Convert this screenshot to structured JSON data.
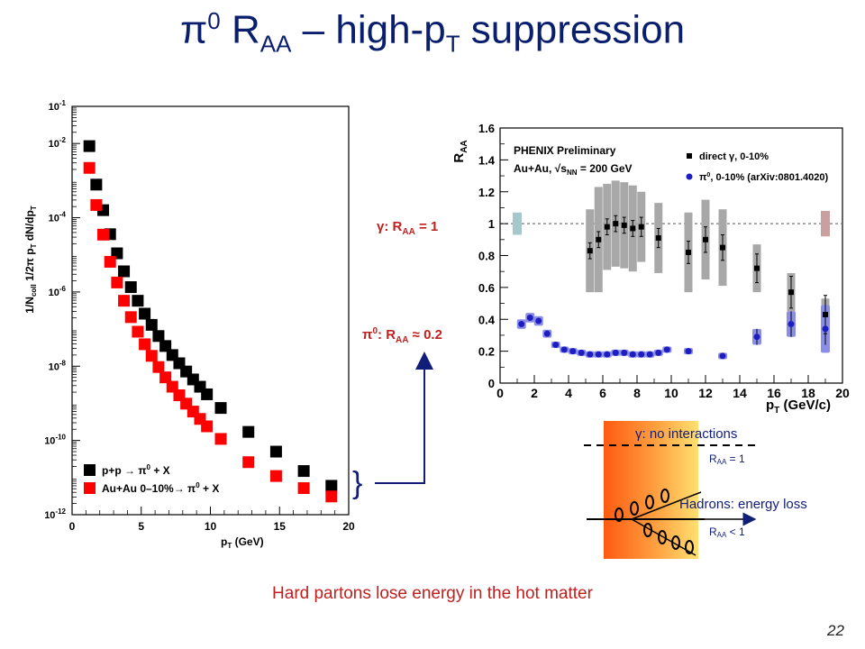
{
  "slide": {
    "title_pi": "π",
    "title_pi_sup": "0",
    "title_r": " R",
    "title_r_sub": "AA",
    "title_rest": " – high-p",
    "title_t_sub": "T",
    "title_end": " suppression",
    "caption": "Hard partons lose energy in the hot matter",
    "page_number": "22"
  },
  "annotations": {
    "gamma_raa": {
      "sym": "γ",
      "mid": ": R",
      "sub": "AA",
      "val": " = 1"
    },
    "pi0_raa": {
      "sym": "π",
      "sup": "0",
      "mid": ": R",
      "sub": "AA",
      "val": " ≈ 0.2"
    },
    "brace": "}"
  },
  "chart_data": [
    {
      "type": "scatter",
      "xlabel": "p_T (GeV)",
      "ylabel": "1/N_coll 1/2π p_T dN/dp_T",
      "xlabel_text": "p",
      "xlabel_sub": "T",
      "xlabel_unit": " (GeV)",
      "ylabel_text": "1/N",
      "ylabel_sub1": "coll",
      "ylabel_mid": " 1/2π p",
      "ylabel_sub2": "T",
      "ylabel_end": " dN/dp",
      "ylabel_sub3": "T",
      "xlim": [
        0,
        20
      ],
      "ylim": [
        1e-12,
        0.1
      ],
      "yscale": "log",
      "x_ticks": [
        "0",
        "5",
        "10",
        "15",
        "20"
      ],
      "y_ticks": [
        {
          "base": "10",
          "exp": "-1"
        },
        {
          "base": "10",
          "exp": "-2"
        },
        {
          "base": "10",
          "exp": "-4"
        },
        {
          "base": "10",
          "exp": "-6"
        },
        {
          "base": "10",
          "exp": "-8"
        },
        {
          "base": "10",
          "exp": "-10"
        },
        {
          "base": "10",
          "exp": "-12"
        }
      ],
      "legend_position": "bottom-left",
      "series": [
        {
          "name": "p+p → π⁰ + X",
          "legend_parts": {
            "a": "p+p ",
            "arrow": "→",
            "b": " π",
            "sup": "0",
            "c": " + X"
          },
          "color": "#000000",
          "x": [
            1.25,
            1.75,
            2.25,
            2.75,
            3.25,
            3.75,
            4.25,
            4.75,
            5.25,
            5.75,
            6.25,
            6.75,
            7.25,
            7.75,
            8.25,
            8.75,
            9.25,
            9.75,
            10.75,
            12.75,
            14.75,
            16.75,
            18.75
          ],
          "y": [
            0.0085,
            0.00078,
            0.00016,
            3.6e-05,
            1.1e-05,
            3.6e-06,
            1.35e-06,
            5.8e-07,
            2.6e-07,
            1.3e-07,
            6.5e-08,
            3.5e-08,
            2e-08,
            1.2e-08,
            7.2e-09,
            4.4e-09,
            2.8e-09,
            1.75e-09,
            7.5e-10,
            1.7e-10,
            5e-11,
            1.5e-11,
            6e-12
          ]
        },
        {
          "name": "Au+Au 0–10% → π⁰ + X",
          "legend_parts": {
            "a": "Au+Au 0–10%",
            "arrow": "→",
            "b": " π",
            "sup": "0",
            "c": " + X"
          },
          "color": "#ff0000",
          "x": [
            1.25,
            1.75,
            2.25,
            2.75,
            3.25,
            3.75,
            4.25,
            4.75,
            5.25,
            5.75,
            6.25,
            6.75,
            7.25,
            7.75,
            8.25,
            8.75,
            9.25,
            9.75,
            10.75,
            12.75,
            14.75,
            16.75,
            18.75
          ],
          "y": [
            0.0022,
            0.00022,
            3.5e-05,
            6.5e-06,
            1.8e-06,
            5.8e-07,
            2.1e-07,
            8.5e-08,
            3.9e-08,
            1.9e-08,
            9.5e-09,
            5e-09,
            2.8e-09,
            1.65e-09,
            9.8e-10,
            6e-10,
            3.8e-10,
            2.4e-10,
            1.1e-10,
            2.6e-11,
            1.1e-11,
            5.2e-12,
            3.1e-12
          ]
        }
      ]
    },
    {
      "type": "scatter",
      "xlabel": "p_T (GeV/c)",
      "ylabel": "R_AA",
      "xlabel_text": "p",
      "xlabel_sub": "T",
      "xlabel_unit": " (GeV/c)",
      "ylabel_text": "R",
      "ylabel_sub": "AA",
      "xlim": [
        0,
        20
      ],
      "ylim": [
        0,
        1.6
      ],
      "x_ticks": [
        "0",
        "2",
        "4",
        "6",
        "8",
        "10",
        "12",
        "14",
        "16",
        "18",
        "20"
      ],
      "y_ticks": [
        "0",
        "0.2",
        "0.4",
        "0.6",
        "0.8",
        "1",
        "1.2",
        "1.4",
        "1.6"
      ],
      "reference_line": 1,
      "header": "PHENIX Preliminary",
      "system_parts": {
        "a": "Au+Au, ",
        "root": "√",
        "s": "s",
        "sub": "NN",
        "b": " = 200 GeV"
      },
      "legend_position": "top-right",
      "normalization_boxes": [
        {
          "x": 1.0,
          "low": 0.93,
          "high": 1.07,
          "color": "#a6c8cc"
        },
        {
          "x": 19.0,
          "low": 0.92,
          "high": 1.08,
          "color": "#c8a0a0"
        }
      ],
      "series": [
        {
          "name": "direct γ, 0-10%",
          "legend_parts": {
            "a": "direct ",
            "sym": "γ",
            "b": ", 0-10%"
          },
          "color": "#000000",
          "band_color": "#a8a8a8",
          "x": [
            5.25,
            5.75,
            6.25,
            6.75,
            7.25,
            7.75,
            8.25,
            9.25,
            11.0,
            12.0,
            13.0,
            15.0,
            17.0,
            19.0
          ],
          "y": [
            0.83,
            0.9,
            0.98,
            1.0,
            0.99,
            0.97,
            0.98,
            0.91,
            0.82,
            0.9,
            0.85,
            0.72,
            0.57,
            0.43
          ],
          "err": [
            0.05,
            0.05,
            0.05,
            0.05,
            0.05,
            0.05,
            0.06,
            0.06,
            0.07,
            0.08,
            0.08,
            0.09,
            0.1,
            0.12
          ],
          "sys": [
            0.26,
            0.33,
            0.27,
            0.27,
            0.27,
            0.27,
            0.22,
            0.22,
            0.25,
            0.25,
            0.24,
            0.15,
            0.12,
            0.1
          ]
        },
        {
          "name": "π⁰, 0-10% (arXiv:0801.4020)",
          "legend_parts": {
            "sym": "π",
            "sup": "0",
            "b": ", 0-10% (arXiv:0801.4020)"
          },
          "color": "#1e1ec0",
          "band_color": "#8a8ee6",
          "x": [
            1.25,
            1.75,
            2.25,
            2.75,
            3.25,
            3.75,
            4.25,
            4.75,
            5.25,
            5.75,
            6.25,
            6.75,
            7.25,
            7.75,
            8.25,
            8.75,
            9.25,
            9.75,
            11.0,
            13.0,
            15.0,
            17.0,
            19.0
          ],
          "y": [
            0.37,
            0.41,
            0.39,
            0.31,
            0.24,
            0.21,
            0.2,
            0.19,
            0.18,
            0.18,
            0.18,
            0.19,
            0.19,
            0.18,
            0.18,
            0.18,
            0.19,
            0.21,
            0.2,
            0.17,
            0.29,
            0.37,
            0.34
          ],
          "err": [
            0.01,
            0.01,
            0.01,
            0.01,
            0.01,
            0.01,
            0.01,
            0.01,
            0.01,
            0.01,
            0.01,
            0.01,
            0.01,
            0.01,
            0.01,
            0.01,
            0.01,
            0.01,
            0.01,
            0.01,
            0.05,
            0.08,
            0.1
          ],
          "sys": [
            0.03,
            0.03,
            0.03,
            0.025,
            0.02,
            0.02,
            0.02,
            0.02,
            0.02,
            0.02,
            0.02,
            0.02,
            0.02,
            0.02,
            0.02,
            0.02,
            0.02,
            0.02,
            0.02,
            0.02,
            0.05,
            0.08,
            0.15
          ]
        }
      ]
    }
  ],
  "schematic": {
    "gamma_label": {
      "sym": "γ",
      "rest": ": no interactions"
    },
    "raa_eq": {
      "r": "R",
      "sub": "AA",
      "val": " = 1"
    },
    "hadron_label": "Hadrons: energy loss",
    "raa_lt": {
      "r": "R",
      "sub": "AA",
      "val": " < 1"
    },
    "gradient_colors": [
      "#ff5a10",
      "#ffa040",
      "#ffe070"
    ]
  }
}
